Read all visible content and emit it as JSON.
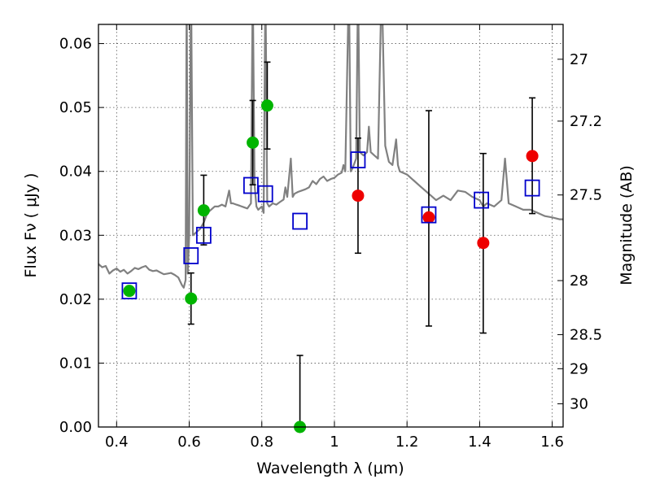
{
  "chart_data": {
    "type": "scatter",
    "xlabel": "Wavelength  λ (μm)",
    "ylabel": "Flux  Fν  ( μJy )",
    "ylabel_right": "Magnitude (AB)",
    "xlim": [
      0.35,
      1.63
    ],
    "ylim": [
      0.0,
      0.063
    ],
    "grid": true,
    "x_ticks": [
      0.4,
      0.6,
      0.8,
      1.0,
      1.2,
      1.4,
      1.6
    ],
    "x_tick_labels": [
      "0.4",
      "0.6",
      "0.8",
      "1",
      "1.2",
      "1.4",
      "1.6"
    ],
    "y_ticks": [
      0.0,
      0.01,
      0.02,
      0.03,
      0.04,
      0.05,
      0.06
    ],
    "y_tick_labels": [
      "0.00",
      "0.01",
      "0.02",
      "0.03",
      "0.04",
      "0.05",
      "0.06"
    ],
    "right_axis": {
      "ticks": [
        27,
        27.2,
        27.5,
        28,
        28.5,
        29,
        30
      ],
      "tick_labels": [
        "27",
        "27.2",
        "27.5",
        "28",
        "28.5",
        "29",
        "30"
      ]
    },
    "series": [
      {
        "kind": "line",
        "color": "#808080",
        "points": [
          [
            0.35,
            0.0255
          ],
          [
            0.36,
            0.025
          ],
          [
            0.37,
            0.0252
          ],
          [
            0.38,
            0.024
          ],
          [
            0.39,
            0.0245
          ],
          [
            0.4,
            0.0248
          ],
          [
            0.41,
            0.0243
          ],
          [
            0.42,
            0.0246
          ],
          [
            0.43,
            0.024
          ],
          [
            0.44,
            0.0244
          ],
          [
            0.45,
            0.0249
          ],
          [
            0.46,
            0.0247
          ],
          [
            0.47,
            0.025
          ],
          [
            0.48,
            0.0252
          ],
          [
            0.49,
            0.0246
          ],
          [
            0.5,
            0.0244
          ],
          [
            0.51,
            0.0245
          ],
          [
            0.52,
            0.0242
          ],
          [
            0.53,
            0.0239
          ],
          [
            0.54,
            0.024
          ],
          [
            0.55,
            0.0241
          ],
          [
            0.56,
            0.0238
          ],
          [
            0.57,
            0.0234
          ],
          [
            0.58,
            0.0222
          ],
          [
            0.585,
            0.0218
          ],
          [
            0.59,
            0.023
          ],
          [
            0.593,
            0.07
          ],
          [
            0.596,
            0.024
          ],
          [
            0.6,
            0.03
          ],
          [
            0.605,
            0.07
          ],
          [
            0.61,
            0.03
          ],
          [
            0.62,
            0.0305
          ],
          [
            0.63,
            0.031
          ],
          [
            0.64,
            0.032
          ],
          [
            0.65,
            0.0335
          ],
          [
            0.66,
            0.034
          ],
          [
            0.67,
            0.0345
          ],
          [
            0.68,
            0.0345
          ],
          [
            0.69,
            0.0348
          ],
          [
            0.7,
            0.0345
          ],
          [
            0.71,
            0.037
          ],
          [
            0.715,
            0.035
          ],
          [
            0.72,
            0.035
          ],
          [
            0.73,
            0.0348
          ],
          [
            0.74,
            0.0346
          ],
          [
            0.75,
            0.0344
          ],
          [
            0.76,
            0.0342
          ],
          [
            0.77,
            0.035
          ],
          [
            0.775,
            0.07
          ],
          [
            0.78,
            0.038
          ],
          [
            0.785,
            0.0345
          ],
          [
            0.79,
            0.034
          ],
          [
            0.8,
            0.0345
          ],
          [
            0.805,
            0.0335
          ],
          [
            0.81,
            0.07
          ],
          [
            0.815,
            0.035
          ],
          [
            0.82,
            0.0345
          ],
          [
            0.83,
            0.035
          ],
          [
            0.84,
            0.0348
          ],
          [
            0.85,
            0.0352
          ],
          [
            0.86,
            0.0356
          ],
          [
            0.865,
            0.0375
          ],
          [
            0.87,
            0.036
          ],
          [
            0.88,
            0.042
          ],
          [
            0.885,
            0.036
          ],
          [
            0.89,
            0.0365
          ],
          [
            0.9,
            0.0368
          ],
          [
            0.91,
            0.037
          ],
          [
            0.92,
            0.0372
          ],
          [
            0.93,
            0.0375
          ],
          [
            0.94,
            0.0385
          ],
          [
            0.95,
            0.038
          ],
          [
            0.96,
            0.0388
          ],
          [
            0.97,
            0.0392
          ],
          [
            0.98,
            0.0385
          ],
          [
            0.99,
            0.0388
          ],
          [
            1.0,
            0.039
          ],
          [
            1.01,
            0.0395
          ],
          [
            1.02,
            0.0398
          ],
          [
            1.025,
            0.041
          ],
          [
            1.03,
            0.04
          ],
          [
            1.04,
            0.07
          ],
          [
            1.045,
            0.04
          ],
          [
            1.05,
            0.0405
          ],
          [
            1.06,
            0.042
          ],
          [
            1.065,
            0.07
          ],
          [
            1.07,
            0.043
          ],
          [
            1.08,
            0.0425
          ],
          [
            1.09,
            0.043
          ],
          [
            1.095,
            0.047
          ],
          [
            1.1,
            0.043
          ],
          [
            1.11,
            0.0425
          ],
          [
            1.12,
            0.042
          ],
          [
            1.13,
            0.07
          ],
          [
            1.14,
            0.044
          ],
          [
            1.15,
            0.0415
          ],
          [
            1.16,
            0.041
          ],
          [
            1.17,
            0.045
          ],
          [
            1.175,
            0.041
          ],
          [
            1.18,
            0.04
          ],
          [
            1.2,
            0.0395
          ],
          [
            1.22,
            0.0385
          ],
          [
            1.24,
            0.0375
          ],
          [
            1.26,
            0.0365
          ],
          [
            1.27,
            0.036
          ],
          [
            1.28,
            0.0355
          ],
          [
            1.3,
            0.0362
          ],
          [
            1.32,
            0.0355
          ],
          [
            1.34,
            0.037
          ],
          [
            1.36,
            0.0368
          ],
          [
            1.38,
            0.036
          ],
          [
            1.4,
            0.0355
          ],
          [
            1.41,
            0.0345
          ],
          [
            1.42,
            0.035
          ],
          [
            1.44,
            0.0345
          ],
          [
            1.46,
            0.0355
          ],
          [
            1.47,
            0.042
          ],
          [
            1.48,
            0.035
          ],
          [
            1.5,
            0.0345
          ],
          [
            1.52,
            0.034
          ],
          [
            1.54,
            0.034
          ],
          [
            1.56,
            0.0335
          ],
          [
            1.58,
            0.033
          ],
          [
            1.6,
            0.0328
          ],
          [
            1.62,
            0.0325
          ],
          [
            1.63,
            0.0325
          ]
        ]
      },
      {
        "kind": "markers",
        "marker": "circle",
        "color": "#00b400",
        "points": [
          [
            0.435,
            0.0213
          ],
          [
            0.605,
            0.0201
          ],
          [
            0.64,
            0.0339
          ],
          [
            0.775,
            0.0445
          ],
          [
            0.815,
            0.0503
          ],
          [
            0.905,
            0.0
          ]
        ]
      },
      {
        "kind": "markers",
        "marker": "circle",
        "color": "#ee0000",
        "points": [
          [
            1.065,
            0.0362
          ],
          [
            1.26,
            0.0328
          ],
          [
            1.41,
            0.0288
          ],
          [
            1.545,
            0.0424
          ]
        ]
      },
      {
        "kind": "markers",
        "marker": "square",
        "color": "#0000cc",
        "points": [
          [
            0.435,
            0.0213
          ],
          [
            0.605,
            0.0268
          ],
          [
            0.64,
            0.03
          ],
          [
            0.77,
            0.0378
          ],
          [
            0.81,
            0.0365
          ],
          [
            0.905,
            0.0322
          ],
          [
            1.065,
            0.0418
          ],
          [
            1.26,
            0.0332
          ],
          [
            1.405,
            0.0355
          ],
          [
            1.545,
            0.0374
          ]
        ]
      }
    ],
    "error_bars": [
      {
        "x": 0.605,
        "low": 0.0161,
        "high": 0.0241
      },
      {
        "x": 0.64,
        "low": 0.0285,
        "high": 0.0394
      },
      {
        "x": 0.775,
        "low": 0.0379,
        "high": 0.0511
      },
      {
        "x": 0.815,
        "low": 0.0435,
        "high": 0.0571
      },
      {
        "x": 0.905,
        "low": 0.0,
        "high": 0.0112
      },
      {
        "x": 1.065,
        "low": 0.0272,
        "high": 0.0452
      },
      {
        "x": 1.26,
        "low": 0.0158,
        "high": 0.0495
      },
      {
        "x": 1.41,
        "low": 0.0147,
        "high": 0.0428
      },
      {
        "x": 1.545,
        "low": 0.0334,
        "high": 0.0515
      }
    ]
  }
}
